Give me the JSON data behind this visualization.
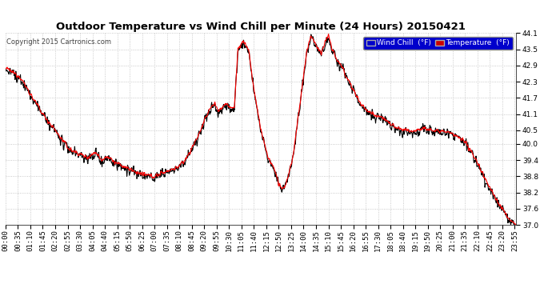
{
  "title": "Outdoor Temperature vs Wind Chill per Minute (24 Hours) 20150421",
  "copyright": "Copyright 2015 Cartronics.com",
  "legend_wind_chill": "Wind Chill  (°F)",
  "legend_temperature": "Temperature  (°F)",
  "wind_chill_color": "#000000",
  "temperature_color": "#ff0000",
  "legend_wc_bg": "#0000cc",
  "legend_temp_bg": "#cc0000",
  "ylim_min": 37.0,
  "ylim_max": 44.1,
  "yticks": [
    37.0,
    37.6,
    38.2,
    38.8,
    39.4,
    40.0,
    40.5,
    41.1,
    41.7,
    42.3,
    42.9,
    43.5,
    44.1
  ],
  "plot_bg_color": "#ffffff",
  "background_color": "#ffffff",
  "grid_color": "#bbbbbb",
  "title_fontsize": 9.5,
  "tick_fontsize": 6.5,
  "line_width": 0.8
}
